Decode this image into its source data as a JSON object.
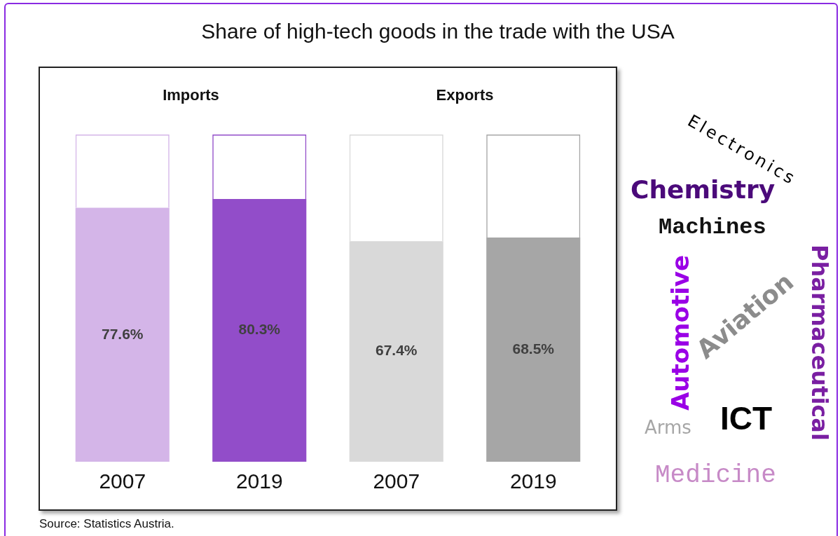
{
  "chart_data": {
    "type": "bar",
    "title": "Share of high-tech goods in the trade with the USA",
    "categories": [
      "2007",
      "2019",
      "2007",
      "2019"
    ],
    "stacked": true,
    "series": [
      {
        "values": [
          77.6,
          80.3,
          67.4,
          68.5
        ],
        "colors": [
          "#d4b5e8",
          "#924dc9",
          "#d9d9d9",
          "#a6a6a6"
        ],
        "value_labels": [
          "77.6%",
          "80.3%",
          "67.4%",
          "68.5%"
        ]
      },
      {
        "values": [
          22.4,
          19.7,
          32.6,
          31.5
        ],
        "colors": [
          "#d4b5e8",
          "#924dc9",
          "#d9d9d9",
          "#a6a6a6"
        ]
      }
    ],
    "ylim": [
      0,
      100
    ],
    "grid": false,
    "legend": false,
    "tick_labels": "x",
    "annotations": [
      "Imports",
      "Exports",
      "Electronics",
      "Chemistry",
      "Machines",
      "Automotive",
      "Aviation",
      "Pharmaceutical",
      "Arms",
      "ICT",
      "Medicine",
      "Source: Statistics Austria."
    ]
  }
}
